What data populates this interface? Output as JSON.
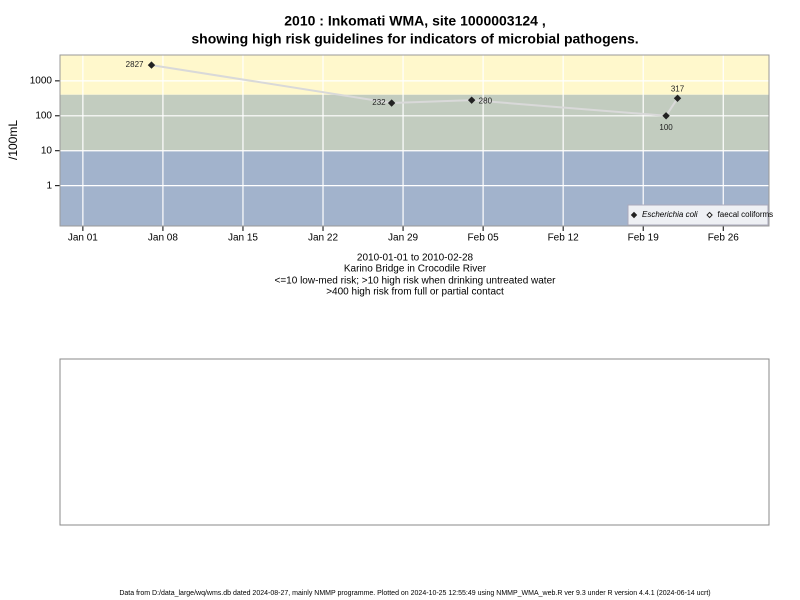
{
  "chart_data": {
    "type": "line",
    "title": "2010 : Inkomati WMA, site 1000003124 ,",
    "title2": "showing high risk guidelines for indicators of microbial pathogens.",
    "subtitle": [
      "2010-01-01 to 2010-02-28",
      "Karino Bridge in Crocodile River",
      "<=10 low-med risk; >10 high risk when drinking untreated water",
      ">400 high risk from full or partial contact"
    ],
    "ylabel": "/100mL",
    "log_y": true,
    "grid": true,
    "grid_color": "#ffffff",
    "line_color": "#d9d9d9",
    "legend": "bottom-right",
    "xlim": [
      "2009-12-30",
      "2010-03-02"
    ],
    "xticks": [
      {
        "value": "2010-01-01",
        "label": "Jan 01"
      },
      {
        "value": "2010-01-08",
        "label": "Jan 08"
      },
      {
        "value": "2010-01-15",
        "label": "Jan 15"
      },
      {
        "value": "2010-01-22",
        "label": "Jan 22"
      },
      {
        "value": "2010-01-29",
        "label": "Jan 29"
      },
      {
        "value": "2010-02-05",
        "label": "Feb 05"
      },
      {
        "value": "2010-02-12",
        "label": "Feb 12"
      },
      {
        "value": "2010-02-19",
        "label": "Feb 19"
      },
      {
        "value": "2010-02-26",
        "label": "Feb 26"
      }
    ],
    "ylim": [
      0.07,
      5500
    ],
    "yticks": [
      1,
      10,
      100,
      1000
    ],
    "risk_bands": [
      {
        "min": 400,
        "color": "#fff8cc"
      },
      {
        "min": 10,
        "max": 400,
        "color": "#c2ccbf"
      },
      {
        "max": 10,
        "color": "#a2b3cc"
      }
    ],
    "series": [
      {
        "name": "Escherichia coli",
        "color": "#222222",
        "filled": true,
        "x": [
          "2010-01-07",
          "2010-01-28",
          "2010-02-04",
          "2010-02-21",
          "2010-02-22"
        ],
        "values": [
          2827,
          232,
          280,
          100,
          317
        ]
      },
      {
        "name": "faecal coliforms",
        "color": "#222222",
        "filled": false,
        "x": [],
        "values": []
      }
    ],
    "footer": "Data from D:/data_large/wq/wms.db dated 2024-08-27, mainly NMMP programme. Plotted on 2024-10-25 12:55:49 using NMMP_WMA_web.R ver 9.3 under R version 4.4.1 (2024-06-14 ucrt)"
  }
}
